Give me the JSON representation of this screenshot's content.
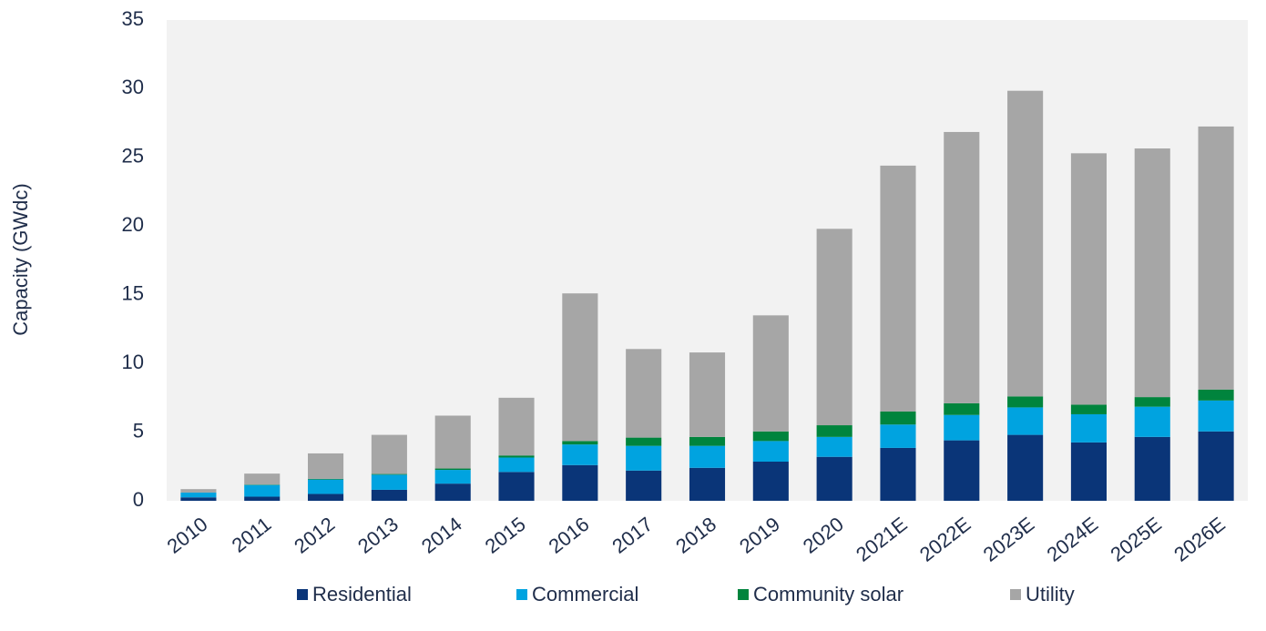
{
  "chart_data": {
    "type": "stacked_bar",
    "y_label": "Capacity (GWdc)",
    "categories": [
      "2010",
      "2011",
      "2012",
      "2013",
      "2014",
      "2015",
      "2016",
      "2017",
      "2018",
      "2019",
      "2020",
      "2021E",
      "2022E",
      "2023E",
      "2024E",
      "2025E",
      "2026E"
    ],
    "series": [
      {
        "name": "Residential",
        "color": "#0a3578",
        "values": [
          0.25,
          0.3,
          0.5,
          0.8,
          1.25,
          2.1,
          2.6,
          2.2,
          2.4,
          2.85,
          3.2,
          3.85,
          4.4,
          4.8,
          4.25,
          4.65,
          5.05
        ]
      },
      {
        "name": "Commercial",
        "color": "#00a3e0",
        "values": [
          0.35,
          0.85,
          1.05,
          1.1,
          1.0,
          1.05,
          1.5,
          1.8,
          1.6,
          1.5,
          1.45,
          1.7,
          1.85,
          2.0,
          2.05,
          2.2,
          2.25
        ]
      },
      {
        "name": "Community solar",
        "color": "#00843d",
        "values": [
          0.0,
          0.03,
          0.05,
          0.05,
          0.1,
          0.15,
          0.25,
          0.6,
          0.65,
          0.7,
          0.85,
          0.95,
          0.85,
          0.8,
          0.7,
          0.7,
          0.8
        ]
      },
      {
        "name": "Utility",
        "color": "#a6a6a6",
        "values": [
          0.25,
          0.8,
          1.85,
          2.85,
          3.85,
          4.2,
          10.75,
          6.45,
          6.15,
          8.45,
          14.3,
          17.9,
          19.75,
          22.25,
          18.3,
          18.1,
          19.15
        ]
      }
    ],
    "ylim": [
      0,
      35
    ],
    "yticks": [
      0,
      5,
      10,
      15,
      20,
      25,
      30,
      35
    ],
    "plot_background": "#f2f2f2",
    "legend": "bottom"
  }
}
